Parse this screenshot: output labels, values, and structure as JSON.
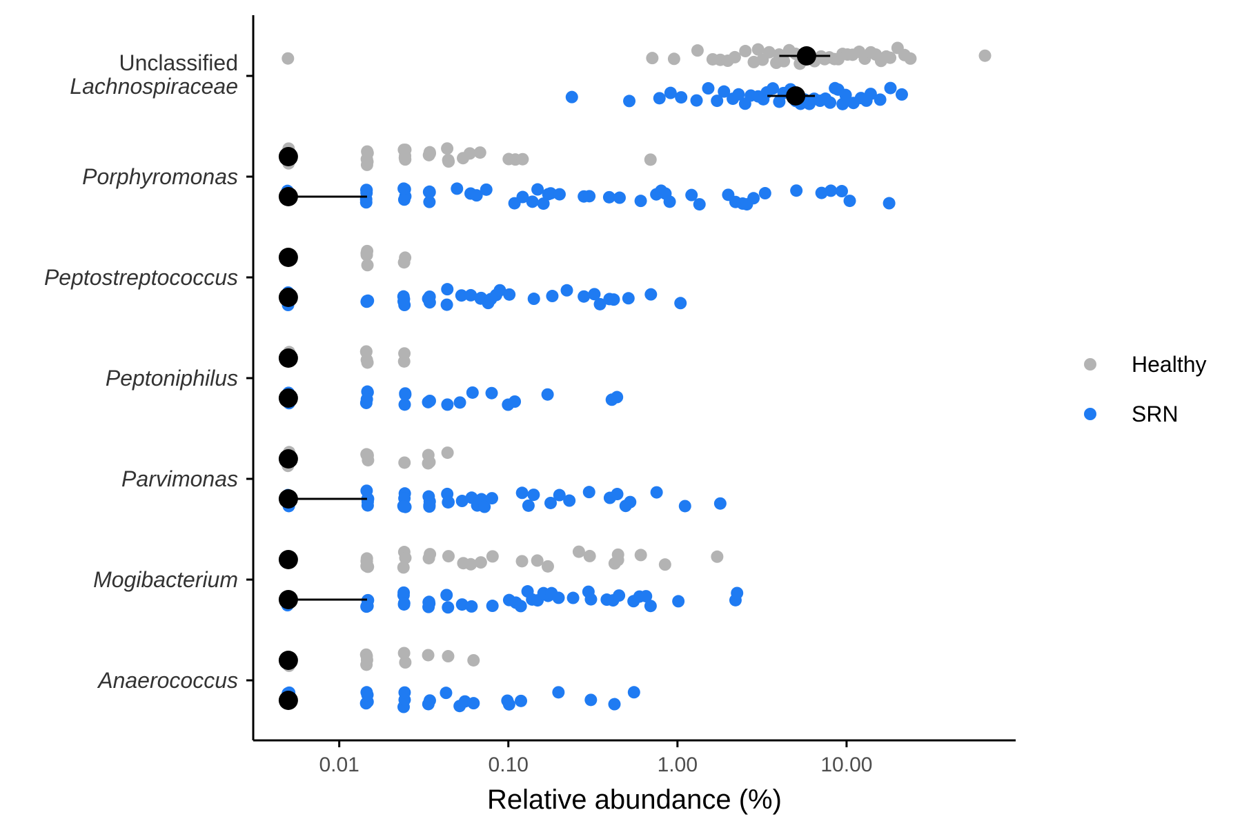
{
  "chart_data": {
    "type": "scatter",
    "xlabel": "Relative abundance (%)",
    "x_scale": "log10",
    "xlim": [
      0.0031,
      100
    ],
    "x_ticks": [
      {
        "value": 0.01,
        "label": "0.01"
      },
      {
        "value": 0.1,
        "label": "0.10"
      },
      {
        "value": 1,
        "label": "1.00"
      },
      {
        "value": 10,
        "label": "10.00"
      }
    ],
    "categories": [
      {
        "key": "unclassified_lachnospiraceae",
        "line1": "Unclassified",
        "line2": "Lachnospiraceae"
      },
      {
        "key": "porphyromonas",
        "line1": "Porphyromonas"
      },
      {
        "key": "peptostreptococcus",
        "line1": "Peptostreptococcus"
      },
      {
        "key": "peptoniphilus",
        "line1": "Peptoniphilus"
      },
      {
        "key": "parvimonas",
        "line1": "Parvimonas"
      },
      {
        "key": "mogibacterium",
        "line1": "Mogibacterium"
      },
      {
        "key": "anaerococcus",
        "line1": "Anaerococcus"
      }
    ],
    "legend": {
      "position": "right",
      "entries": [
        {
          "name": "Healthy",
          "color": "#b3b3b3"
        },
        {
          "name": "SRN",
          "color": "#1f7bf2"
        }
      ]
    },
    "series": [
      {
        "name": "Healthy",
        "color": "#b3b3b3",
        "groups": {
          "unclassified_lachnospiraceae": {
            "points": [
              0.005,
              0.7,
              0.95,
              1.3,
              1.6,
              1.8,
              2.0,
              2.2,
              2.5,
              2.8,
              3.0,
              3.2,
              3.5,
              3.8,
              4.0,
              4.3,
              4.6,
              5.0,
              5.3,
              5.6,
              6.0,
              6.5,
              7.0,
              7.5,
              8.0,
              8.5,
              9.0,
              9.5,
              10.0,
              11.0,
              12.0,
              13.0,
              14.0,
              15.0,
              16.0,
              17.0,
              18.0,
              20.0,
              22.0,
              24.0,
              65.0
            ],
            "median": 5.8,
            "range": [
              4.0,
              8.0
            ]
          },
          "porphyromonas": {
            "points": [
              0.005,
              0.005,
              0.005,
              0.0146,
              0.0146,
              0.0146,
              0.0146,
              0.0146,
              0.0243,
              0.0243,
              0.0243,
              0.0243,
              0.0243,
              0.034,
              0.034,
              0.034,
              0.0437,
              0.0437,
              0.0437,
              0.0534,
              0.06,
              0.068,
              0.1,
              0.11,
              0.12,
              0.7
            ],
            "median": 0.005,
            "range": [
              0.005,
              0.005
            ]
          },
          "peptostreptococcus": {
            "points": [
              0.005,
              0.005,
              0.005,
              0.0146,
              0.0146,
              0.0146,
              0.0146,
              0.0243,
              0.0243
            ],
            "median": 0.005,
            "range": [
              0.005,
              0.005
            ]
          },
          "peptoniphilus": {
            "points": [
              0.005,
              0.005,
              0.005,
              0.0146,
              0.0146,
              0.0146,
              0.0146,
              0.0243,
              0.0243
            ],
            "median": 0.005,
            "range": [
              0.005,
              0.005
            ]
          },
          "parvimonas": {
            "points": [
              0.005,
              0.005,
              0.005,
              0.0146,
              0.0146,
              0.0146,
              0.0146,
              0.0146,
              0.0243,
              0.034,
              0.034,
              0.034,
              0.0437
            ],
            "median": 0.005,
            "range": [
              0.005,
              0.005
            ]
          },
          "mogibacterium": {
            "points": [
              0.005,
              0.005,
              0.005,
              0.0146,
              0.0146,
              0.0146,
              0.0146,
              0.0146,
              0.0243,
              0.0243,
              0.0243,
              0.034,
              0.034,
              0.0437,
              0.0534,
              0.06,
              0.068,
              0.08,
              0.12,
              0.15,
              0.17,
              0.26,
              0.3,
              0.42,
              0.44,
              0.45,
              0.6,
              0.85,
              1.7
            ],
            "median": 0.005,
            "range": [
              0.005,
              0.005
            ]
          },
          "anaerococcus": {
            "points": [
              0.005,
              0.005,
              0.005,
              0.0146,
              0.0146,
              0.0146,
              0.0146,
              0.0243,
              0.0243,
              0.034,
              0.0437,
              0.062
            ],
            "median": 0.005,
            "range": [
              0.005,
              0.005
            ]
          }
        }
      },
      {
        "name": "SRN",
        "color": "#1f7bf2",
        "groups": {
          "unclassified_lachnospiraceae": {
            "points": [
              0.24,
              0.52,
              0.78,
              0.92,
              1.05,
              1.3,
              1.5,
              1.7,
              1.9,
              2.1,
              2.3,
              2.5,
              2.7,
              3.0,
              3.2,
              3.4,
              3.7,
              4.0,
              4.3,
              4.6,
              5.0,
              5.3,
              5.6,
              6.0,
              6.5,
              7.0,
              7.5,
              8.0,
              8.5,
              9.0,
              9.5,
              10.0,
              11.0,
              12.0,
              13.0,
              14.0,
              16.0,
              18.0,
              21.0
            ],
            "median": 5.0,
            "range": [
              3.4,
              6.5
            ]
          },
          "porphyromonas": {
            "points": [
              0.005,
              0.005,
              0.005,
              0.0146,
              0.0146,
              0.0146,
              0.0146,
              0.0146,
              0.0243,
              0.0243,
              0.0243,
              0.0243,
              0.034,
              0.034,
              0.034,
              0.034,
              0.05,
              0.06,
              0.065,
              0.075,
              0.11,
              0.12,
              0.14,
              0.15,
              0.16,
              0.17,
              0.18,
              0.2,
              0.28,
              0.3,
              0.4,
              0.45,
              0.6,
              0.75,
              0.8,
              0.85,
              0.9,
              1.2,
              1.35,
              2.0,
              2.2,
              2.4,
              2.6,
              2.8,
              3.3,
              5.0,
              7.2,
              8.0,
              9.5,
              10.5,
              18.0
            ],
            "median": 0.005,
            "range": [
              0.005,
              0.0146
            ]
          },
          "peptostreptococcus": {
            "points": [
              0.005,
              0.005,
              0.005,
              0.0146,
              0.0146,
              0.0146,
              0.0146,
              0.0243,
              0.0243,
              0.0243,
              0.0243,
              0.034,
              0.034,
              0.034,
              0.0437,
              0.0437,
              0.0534,
              0.06,
              0.068,
              0.07,
              0.077,
              0.08,
              0.085,
              0.09,
              0.1,
              0.14,
              0.18,
              0.22,
              0.28,
              0.32,
              0.35,
              0.4,
              0.42,
              0.52,
              0.7,
              1.05
            ],
            "median": 0.005,
            "range": [
              0.005,
              0.005
            ]
          },
          "peptoniphilus": {
            "points": [
              0.005,
              0.005,
              0.005,
              0.0146,
              0.0146,
              0.0146,
              0.0146,
              0.0243,
              0.0243,
              0.0243,
              0.034,
              0.034,
              0.043,
              0.052,
              0.062,
              0.08,
              0.1,
              0.11,
              0.17,
              0.41,
              0.44
            ],
            "median": 0.005,
            "range": [
              0.005,
              0.005
            ]
          },
          "parvimonas": {
            "points": [
              0.005,
              0.005,
              0.005,
              0.0146,
              0.0146,
              0.0146,
              0.0146,
              0.0146,
              0.0243,
              0.0243,
              0.0243,
              0.0243,
              0.0243,
              0.034,
              0.034,
              0.034,
              0.034,
              0.0437,
              0.0437,
              0.0437,
              0.0534,
              0.06,
              0.065,
              0.07,
              0.072,
              0.08,
              0.12,
              0.13,
              0.14,
              0.18,
              0.2,
              0.23,
              0.3,
              0.4,
              0.44,
              0.5,
              0.52,
              0.75,
              1.1,
              1.8
            ],
            "median": 0.005,
            "range": [
              0.005,
              0.0146
            ]
          },
          "mogibacterium": {
            "points": [
              0.005,
              0.005,
              0.005,
              0.0146,
              0.0146,
              0.0146,
              0.0146,
              0.0146,
              0.0243,
              0.0243,
              0.0243,
              0.0243,
              0.034,
              0.034,
              0.034,
              0.034,
              0.0437,
              0.0437,
              0.0534,
              0.06,
              0.08,
              0.1,
              0.11,
              0.12,
              0.13,
              0.14,
              0.15,
              0.16,
              0.17,
              0.18,
              0.2,
              0.24,
              0.3,
              0.31,
              0.38,
              0.42,
              0.45,
              0.55,
              0.6,
              0.65,
              0.7,
              1.0,
              2.2,
              2.25
            ],
            "median": 0.005,
            "range": [
              0.005,
              0.0146
            ]
          },
          "anaerococcus": {
            "points": [
              0.005,
              0.005,
              0.005,
              0.0146,
              0.0146,
              0.0146,
              0.0146,
              0.0243,
              0.0243,
              0.0243,
              0.034,
              0.034,
              0.043,
              0.052,
              0.055,
              0.062,
              0.1,
              0.1,
              0.12,
              0.2,
              0.31,
              0.43,
              0.56
            ],
            "median": 0.005,
            "range": [
              0.005,
              0.005
            ]
          }
        }
      }
    ]
  }
}
